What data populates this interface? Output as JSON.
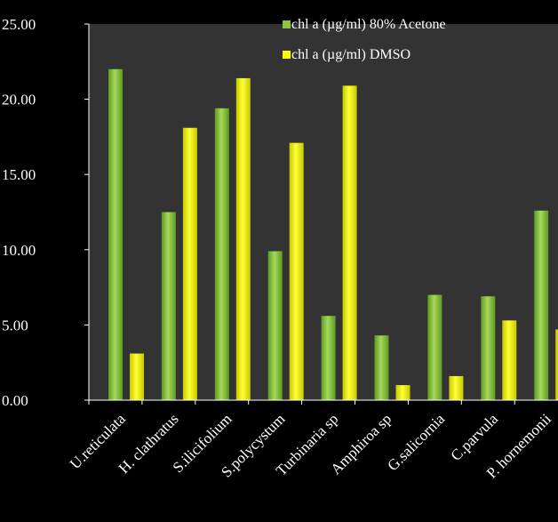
{
  "chart_data": {
    "type": "bar",
    "categories": [
      "U.reticulata",
      "H. clathratus",
      "S.ilicifolium",
      "S.polycystum",
      "Turbinaria sp",
      "Amphiroa sp",
      "G.salicornia",
      "C.parvula",
      "P. hornemonii"
    ],
    "series": [
      {
        "name": "chl a (µg/ml) 80% Acetone",
        "color": "#8cc63f",
        "values": [
          22.0,
          12.5,
          19.4,
          9.9,
          5.6,
          4.3,
          7.0,
          6.9,
          12.6
        ]
      },
      {
        "name": "chl a (µg/ml) DMSO",
        "color": "#ffff00",
        "values": [
          3.1,
          18.1,
          21.4,
          17.1,
          20.9,
          1.0,
          1.6,
          5.3,
          4.7
        ]
      }
    ],
    "ylim": [
      0,
      25
    ],
    "yticks": [
      "0.00",
      "5.00",
      "10.00",
      "15.00",
      "20.00",
      "25.00"
    ],
    "grid": false,
    "legend": "top-right",
    "plot_background": "#333333",
    "page_background": "#000000"
  }
}
